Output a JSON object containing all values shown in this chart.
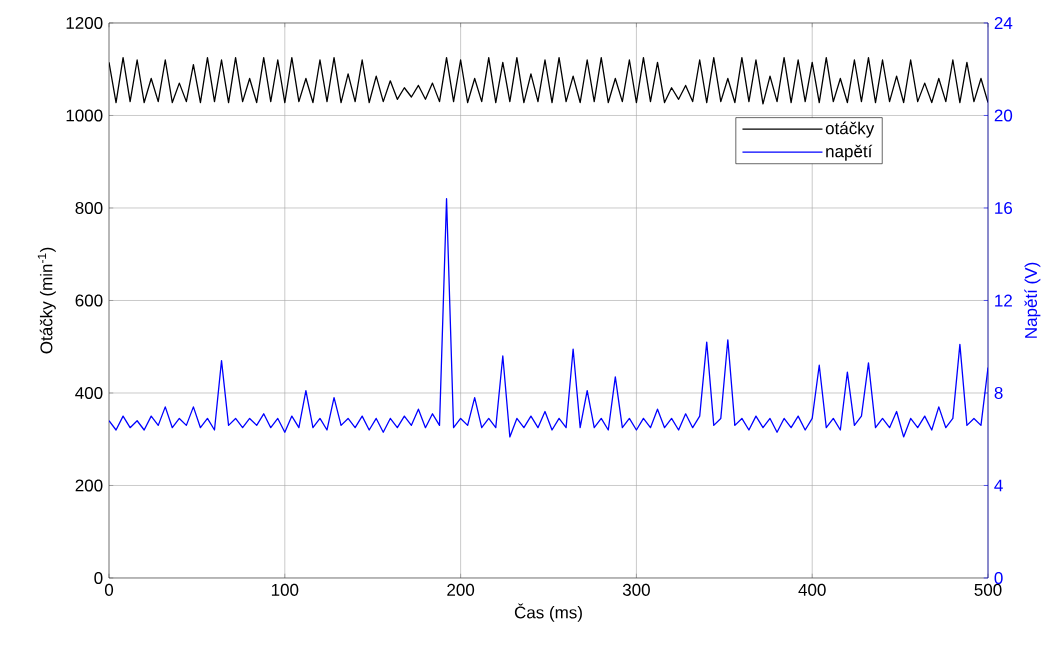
{
  "chart_data": {
    "type": "line",
    "xlabel": "Čas (ms)",
    "ylabel": "Otáčky (min$^{-1}$)",
    "y2label": "Napětí (V)",
    "x": [
      0,
      4,
      8,
      12,
      16,
      20,
      24,
      28,
      32,
      36,
      40,
      44,
      48,
      52,
      56,
      60,
      64,
      68,
      72,
      76,
      80,
      84,
      88,
      92,
      96,
      100,
      104,
      108,
      112,
      116,
      120,
      124,
      128,
      132,
      136,
      140,
      144,
      148,
      152,
      156,
      160,
      164,
      168,
      172,
      176,
      180,
      184,
      188,
      192,
      196,
      200,
      204,
      208,
      212,
      216,
      220,
      224,
      228,
      232,
      236,
      240,
      244,
      248,
      252,
      256,
      260,
      264,
      268,
      272,
      276,
      280,
      284,
      288,
      292,
      296,
      300,
      304,
      308,
      312,
      316,
      320,
      324,
      328,
      332,
      336,
      340,
      344,
      348,
      352,
      356,
      360,
      364,
      368,
      372,
      376,
      380,
      384,
      388,
      392,
      396,
      400,
      404,
      408,
      412,
      416,
      420,
      424,
      428,
      432,
      436,
      440,
      444,
      448,
      452,
      456,
      460,
      464,
      468,
      472,
      476,
      480,
      484,
      488,
      492,
      496,
      500
    ],
    "series": [
      {
        "name": "otáčky",
        "color": "#000000",
        "values": [
          1115,
          1028,
          1125,
          1030,
          1120,
          1028,
          1080,
          1030,
          1120,
          1028,
          1070,
          1030,
          1110,
          1028,
          1125,
          1030,
          1120,
          1028,
          1125,
          1030,
          1080,
          1028,
          1125,
          1030,
          1120,
          1028,
          1125,
          1030,
          1080,
          1028,
          1120,
          1030,
          1125,
          1028,
          1090,
          1030,
          1120,
          1028,
          1085,
          1030,
          1075,
          1035,
          1060,
          1040,
          1065,
          1035,
          1070,
          1030,
          1125,
          1030,
          1120,
          1028,
          1080,
          1030,
          1125,
          1028,
          1115,
          1030,
          1125,
          1028,
          1090,
          1030,
          1120,
          1028,
          1125,
          1030,
          1085,
          1028,
          1120,
          1030,
          1125,
          1028,
          1080,
          1030,
          1120,
          1028,
          1125,
          1030,
          1115,
          1028,
          1060,
          1035,
          1065,
          1030,
          1120,
          1028,
          1125,
          1030,
          1080,
          1028,
          1125,
          1030,
          1120,
          1025,
          1085,
          1030,
          1125,
          1028,
          1120,
          1030,
          1115,
          1028,
          1125,
          1030,
          1080,
          1028,
          1120,
          1030,
          1125,
          1028,
          1120,
          1030,
          1085,
          1028,
          1120,
          1030,
          1070,
          1028,
          1080,
          1030,
          1120,
          1028,
          1115,
          1030,
          1080,
          1028
        ]
      },
      {
        "name": "napětí",
        "color": "#0000ff",
        "axis": "y2",
        "values": [
          6.8,
          6.4,
          7.0,
          6.5,
          6.8,
          6.4,
          7.0,
          6.6,
          7.4,
          6.5,
          6.9,
          6.6,
          7.4,
          6.5,
          6.9,
          6.4,
          9.4,
          6.6,
          6.9,
          6.5,
          6.9,
          6.6,
          7.1,
          6.5,
          6.9,
          6.3,
          7.0,
          6.5,
          8.1,
          6.5,
          6.9,
          6.4,
          7.8,
          6.6,
          6.9,
          6.5,
          7.0,
          6.4,
          6.9,
          6.3,
          6.9,
          6.5,
          7.0,
          6.6,
          7.3,
          6.5,
          7.1,
          6.6,
          16.4,
          6.5,
          6.9,
          6.6,
          7.8,
          6.5,
          6.9,
          6.5,
          9.6,
          6.1,
          6.9,
          6.5,
          7.0,
          6.5,
          7.2,
          6.4,
          6.9,
          6.5,
          9.9,
          6.5,
          8.1,
          6.5,
          6.9,
          6.4,
          8.7,
          6.5,
          6.9,
          6.4,
          6.9,
          6.5,
          7.3,
          6.5,
          6.9,
          6.4,
          7.1,
          6.5,
          7.0,
          10.2,
          6.6,
          6.9,
          10.3,
          6.6,
          6.9,
          6.4,
          7.0,
          6.5,
          6.9,
          6.3,
          6.9,
          6.5,
          7.0,
          6.4,
          6.9,
          9.2,
          6.5,
          6.9,
          6.4,
          8.9,
          6.6,
          7.0,
          9.3,
          6.5,
          6.9,
          6.5,
          7.2,
          6.1,
          6.9,
          6.5,
          7.0,
          6.4,
          7.4,
          6.5,
          6.9,
          10.1,
          6.6,
          6.9,
          6.6,
          9.1
        ]
      }
    ],
    "xlim": [
      0,
      500
    ],
    "xticks": [
      0,
      100,
      200,
      300,
      400,
      500
    ],
    "ylim": [
      0,
      1200
    ],
    "yticks": [
      0,
      200,
      400,
      600,
      800,
      1000,
      1200
    ],
    "y2lim": [
      0,
      24
    ],
    "y2ticks": [
      0,
      4,
      8,
      12,
      16,
      20,
      24
    ],
    "grid": true,
    "legend": "top right",
    "line_style": "solid",
    "marker": "none"
  }
}
